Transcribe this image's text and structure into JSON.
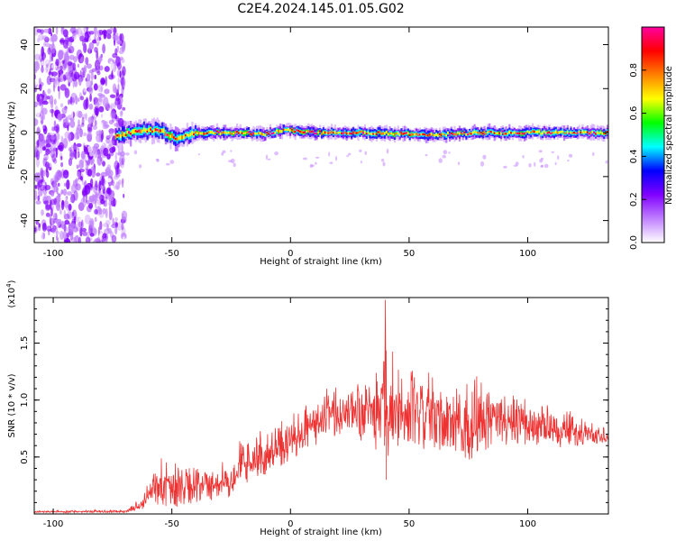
{
  "title": "C2E4.2024.145.01.05.G02",
  "chart_data": [
    {
      "type": "heatmap",
      "xlabel": "Height of straight line (km)",
      "ylabel": "Frequency (Hz)",
      "xlim": [
        -108,
        134
      ],
      "ylim": [
        -50,
        48
      ],
      "xticks": [
        -100,
        -50,
        0,
        50,
        100
      ],
      "yticks": [
        -40,
        -20,
        0,
        20,
        40
      ],
      "colorbar": {
        "label": "Normalized spectral amplitude",
        "range": [
          0,
          1
        ],
        "ticks": [
          "0.0",
          "0.2",
          "0.4",
          "0.6",
          "0.8"
        ],
        "tick_values": [
          0.0,
          0.2,
          0.4,
          0.6,
          0.8
        ],
        "colors": [
          "#ffffff",
          "#c080ff",
          "#8000ff",
          "#0000ff",
          "#00ffff",
          "#00ff00",
          "#ffff00",
          "#ff8000",
          "#ff0000",
          "#ff00a0"
        ]
      },
      "noise_region_x": [
        -108,
        -70
      ],
      "signal_band": {
        "center_frequency": 0,
        "x_start": -74,
        "x_end": 134,
        "profile": [
          {
            "x": -74,
            "f": -2
          },
          {
            "x": -65,
            "f": 1
          },
          {
            "x": -55,
            "f": 1
          },
          {
            "x": -48,
            "f": -3
          },
          {
            "x": -40,
            "f": 0
          },
          {
            "x": -30,
            "f": 0
          },
          {
            "x": -20,
            "f": 0
          },
          {
            "x": -12,
            "f": -1
          },
          {
            "x": -5,
            "f": 1
          },
          {
            "x": 0,
            "f": 1
          },
          {
            "x": 10,
            "f": 0
          },
          {
            "x": 30,
            "f": 0
          },
          {
            "x": 60,
            "f": -1
          },
          {
            "x": 80,
            "f": 0
          },
          {
            "x": 100,
            "f": 0
          },
          {
            "x": 134,
            "f": 0
          }
        ]
      }
    },
    {
      "type": "line",
      "xlabel": "Height of straight line (km)",
      "ylabel": "SNR (10 * v/v)",
      "exponent_label": "(x10",
      "exponent_power": "4",
      "exponent_close": ")",
      "xlim": [
        -108,
        134
      ],
      "ylim": [
        0,
        1.9
      ],
      "xticks": [
        -100,
        -50,
        0,
        50,
        100
      ],
      "yticks": [
        "0.5",
        "1.0",
        "1.5"
      ],
      "ytick_values": [
        0.5,
        1.0,
        1.5
      ],
      "color": "#ee3333",
      "series_envelope": [
        {
          "x": -108,
          "low": 0.01,
          "high": 0.03
        },
        {
          "x": -70,
          "low": 0.01,
          "high": 0.04
        },
        {
          "x": -64,
          "low": 0.03,
          "high": 0.14
        },
        {
          "x": -58,
          "low": 0.08,
          "high": 0.4
        },
        {
          "x": -55,
          "low": 0.05,
          "high": 0.57
        },
        {
          "x": -45,
          "low": 0.06,
          "high": 0.48
        },
        {
          "x": -35,
          "low": 0.08,
          "high": 0.45
        },
        {
          "x": -25,
          "low": 0.15,
          "high": 0.55
        },
        {
          "x": -20,
          "low": 0.25,
          "high": 0.72
        },
        {
          "x": -10,
          "low": 0.35,
          "high": 0.78
        },
        {
          "x": 0,
          "low": 0.45,
          "high": 0.9
        },
        {
          "x": 10,
          "low": 0.6,
          "high": 1.05
        },
        {
          "x": 20,
          "low": 0.62,
          "high": 1.2
        },
        {
          "x": 25,
          "low": 0.65,
          "high": 1.3
        },
        {
          "x": 30,
          "low": 0.6,
          "high": 1.4
        },
        {
          "x": 35,
          "low": 0.55,
          "high": 1.45
        },
        {
          "x": 40,
          "low": 0.4,
          "high": 1.85
        },
        {
          "x": 45,
          "low": 0.55,
          "high": 1.4
        },
        {
          "x": 55,
          "low": 0.55,
          "high": 1.3
        },
        {
          "x": 70,
          "low": 0.55,
          "high": 1.2
        },
        {
          "x": 75,
          "low": 0.35,
          "high": 1.3
        },
        {
          "x": 85,
          "low": 0.6,
          "high": 1.2
        },
        {
          "x": 100,
          "low": 0.6,
          "high": 1.05
        },
        {
          "x": 115,
          "low": 0.58,
          "high": 0.95
        },
        {
          "x": 125,
          "low": 0.6,
          "high": 0.85
        },
        {
          "x": 134,
          "low": 0.62,
          "high": 0.78
        }
      ]
    }
  ]
}
